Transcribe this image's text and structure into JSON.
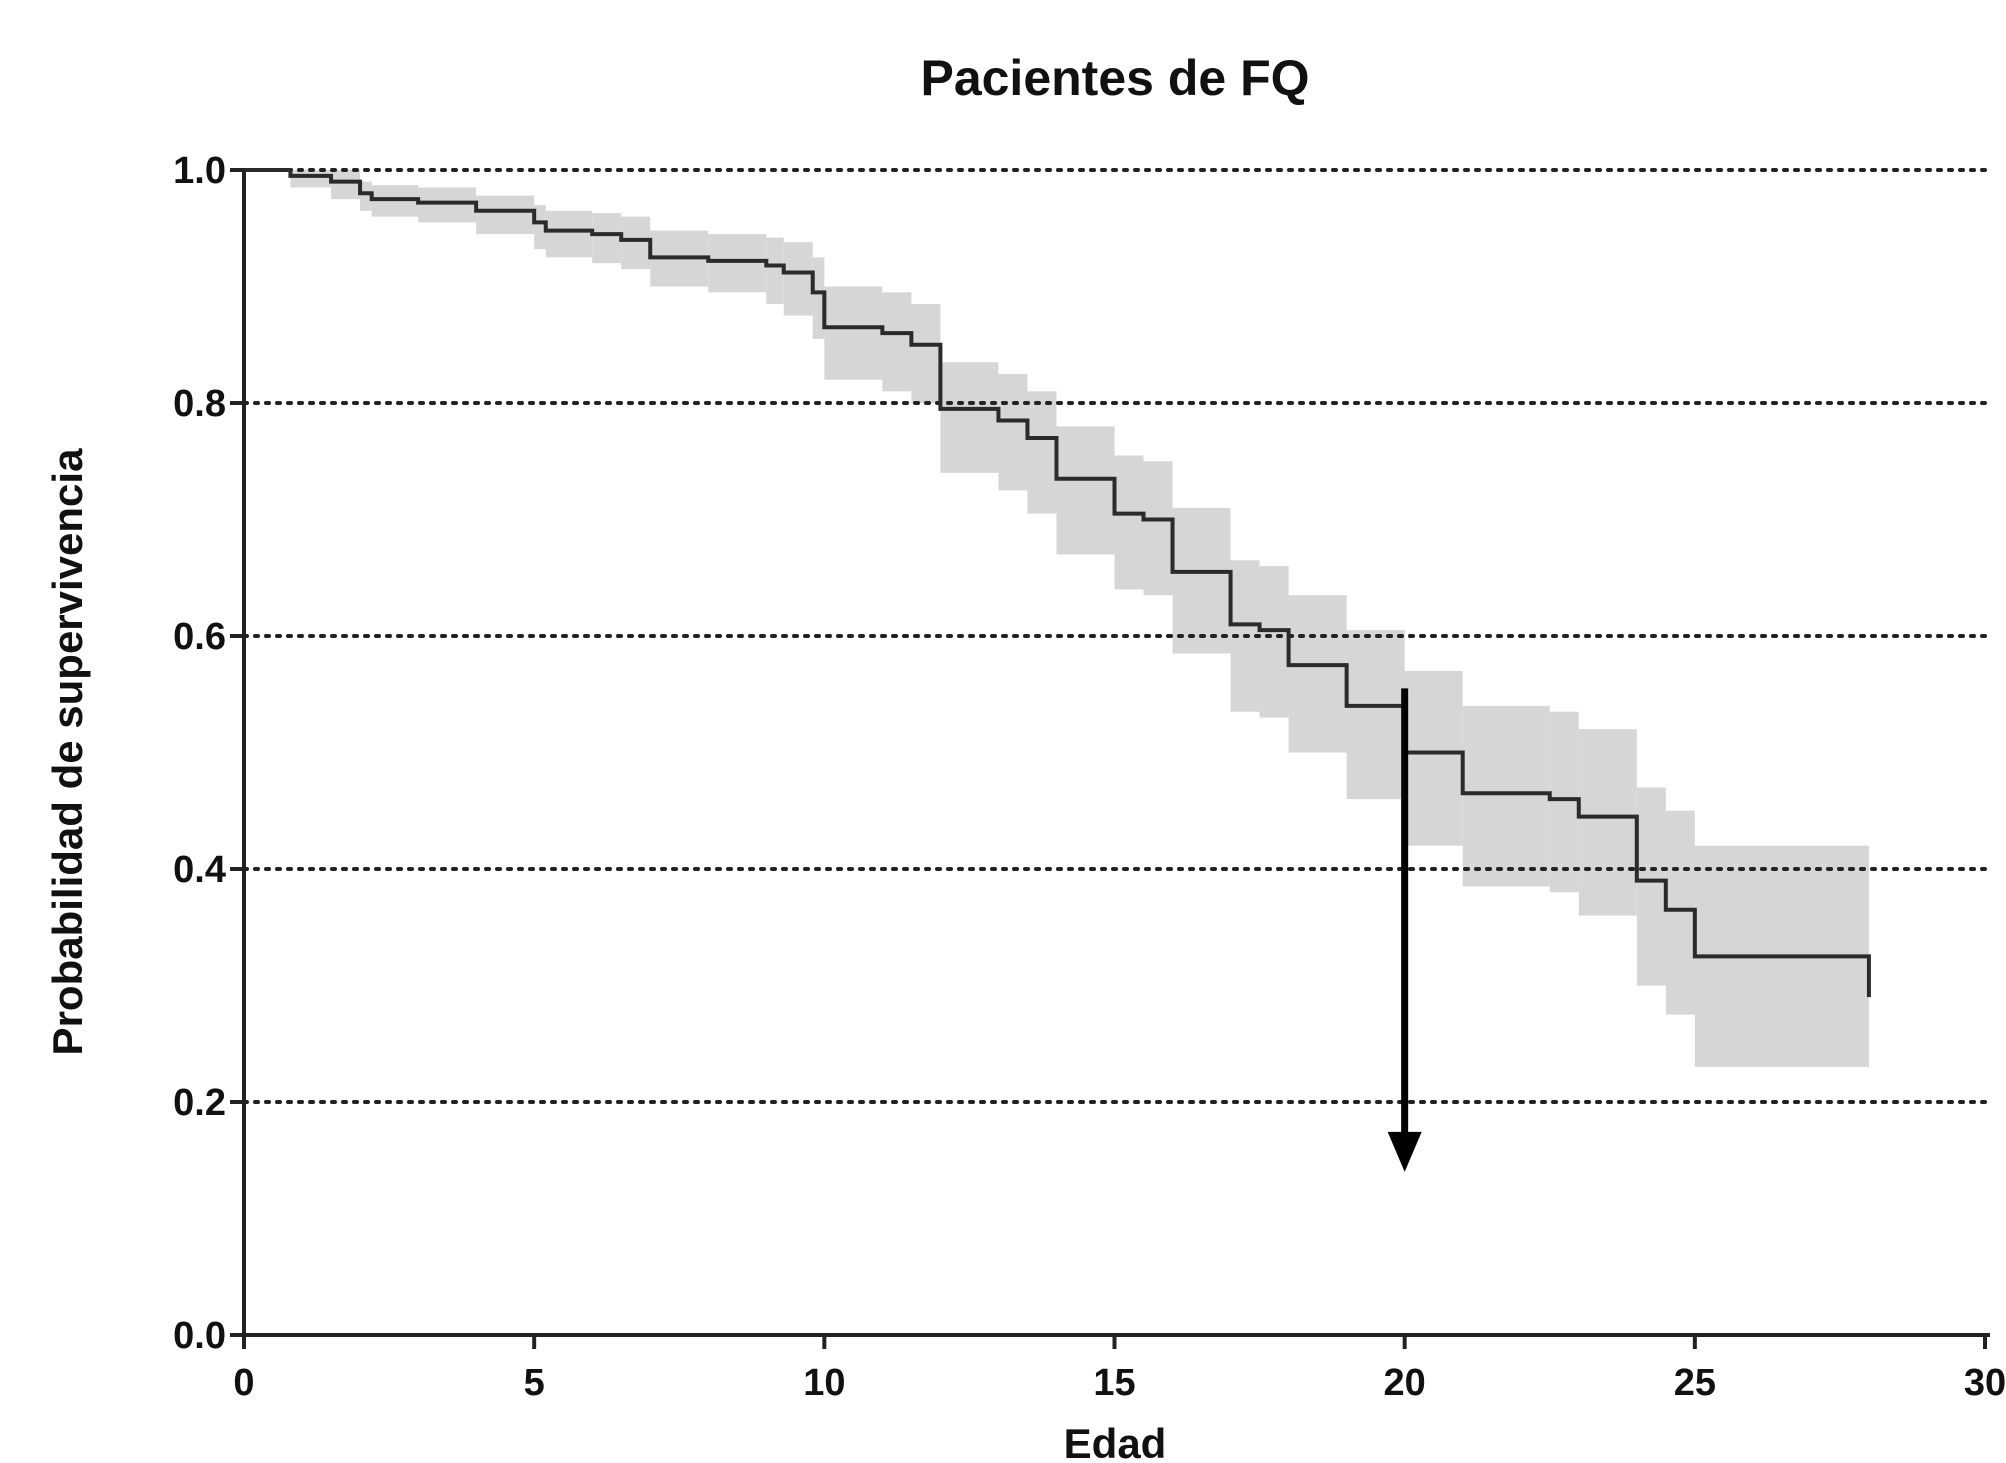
{
  "chart_data": {
    "type": "line",
    "subtype": "kaplan-meier survival curve with confidence band",
    "title": "Pacientes de FQ",
    "xlabel": "Edad",
    "ylabel": "Probabilidad de supervivencia",
    "xlim": [
      0,
      30
    ],
    "ylim": [
      0,
      1.0
    ],
    "x_ticks": [
      0,
      5,
      10,
      15,
      20,
      25,
      30
    ],
    "y_ticks": [
      0.0,
      0.2,
      0.4,
      0.6,
      0.8,
      1.0
    ],
    "x_tick_labels": [
      "0",
      "5",
      "10",
      "15",
      "20",
      "25",
      "30"
    ],
    "y_tick_labels": [
      "0.0",
      "0.2",
      "0.4",
      "0.6",
      "0.8",
      "1.0"
    ],
    "grid": "horizontal dotted",
    "colors": {
      "curve": "#2b2b2b",
      "band": "#d6d6d6",
      "grid": "#222222",
      "arrow": "#000000"
    },
    "series": [
      {
        "steps": [
          [
            0,
            1.0
          ],
          [
            0.8,
            0.995
          ],
          [
            1.5,
            0.99
          ],
          [
            2,
            0.98
          ],
          [
            2.2,
            0.975
          ],
          [
            3,
            0.972
          ],
          [
            4,
            0.965
          ],
          [
            5,
            0.955
          ],
          [
            5.2,
            0.948
          ],
          [
            6,
            0.945
          ],
          [
            6.5,
            0.94
          ],
          [
            7,
            0.925
          ],
          [
            8,
            0.922
          ],
          [
            9,
            0.918
          ],
          [
            9.3,
            0.912
          ],
          [
            9.8,
            0.895
          ],
          [
            10,
            0.865
          ],
          [
            11,
            0.86
          ],
          [
            11.5,
            0.85
          ],
          [
            12,
            0.795
          ],
          [
            13,
            0.785
          ],
          [
            13.5,
            0.77
          ],
          [
            14,
            0.735
          ],
          [
            15,
            0.705
          ],
          [
            15.5,
            0.7
          ],
          [
            16,
            0.655
          ],
          [
            17,
            0.61
          ],
          [
            17.5,
            0.605
          ],
          [
            18,
            0.575
          ],
          [
            19,
            0.54
          ],
          [
            20,
            0.5
          ],
          [
            21,
            0.465
          ],
          [
            22.5,
            0.46
          ],
          [
            23,
            0.445
          ],
          [
            24,
            0.39
          ],
          [
            24.5,
            0.365
          ],
          [
            25,
            0.325
          ],
          [
            28,
            0.29
          ]
        ]
      }
    ],
    "confidence_band": [
      [
        0,
        1.0,
        1.0
      ],
      [
        0.8,
        1.0,
        0.985
      ],
      [
        1.5,
        1.0,
        0.975
      ],
      [
        2,
        0.99,
        0.965
      ],
      [
        2.2,
        0.987,
        0.96
      ],
      [
        3,
        0.985,
        0.955
      ],
      [
        4,
        0.978,
        0.945
      ],
      [
        5,
        0.97,
        0.932
      ],
      [
        5.2,
        0.965,
        0.925
      ],
      [
        6,
        0.963,
        0.92
      ],
      [
        6.5,
        0.96,
        0.915
      ],
      [
        7,
        0.948,
        0.9
      ],
      [
        8,
        0.945,
        0.895
      ],
      [
        9,
        0.942,
        0.885
      ],
      [
        9.3,
        0.938,
        0.875
      ],
      [
        9.8,
        0.925,
        0.855
      ],
      [
        10,
        0.9,
        0.82
      ],
      [
        11,
        0.895,
        0.81
      ],
      [
        11.5,
        0.885,
        0.8
      ],
      [
        12,
        0.835,
        0.74
      ],
      [
        13,
        0.825,
        0.725
      ],
      [
        13.5,
        0.81,
        0.705
      ],
      [
        14,
        0.78,
        0.67
      ],
      [
        15,
        0.755,
        0.64
      ],
      [
        15.5,
        0.75,
        0.635
      ],
      [
        16,
        0.71,
        0.585
      ],
      [
        17,
        0.665,
        0.535
      ],
      [
        17.5,
        0.66,
        0.53
      ],
      [
        18,
        0.635,
        0.5
      ],
      [
        19,
        0.605,
        0.46
      ],
      [
        20,
        0.57,
        0.42
      ],
      [
        21,
        0.54,
        0.385
      ],
      [
        22.5,
        0.535,
        0.38
      ],
      [
        23,
        0.52,
        0.36
      ],
      [
        24,
        0.47,
        0.3
      ],
      [
        24.5,
        0.45,
        0.275
      ],
      [
        25,
        0.42,
        0.23
      ],
      [
        28,
        0.42,
        0.18
      ]
    ],
    "annotations": [
      {
        "type": "arrow",
        "x": 20,
        "y_from": 0.555,
        "y_to": 0.14
      }
    ]
  }
}
